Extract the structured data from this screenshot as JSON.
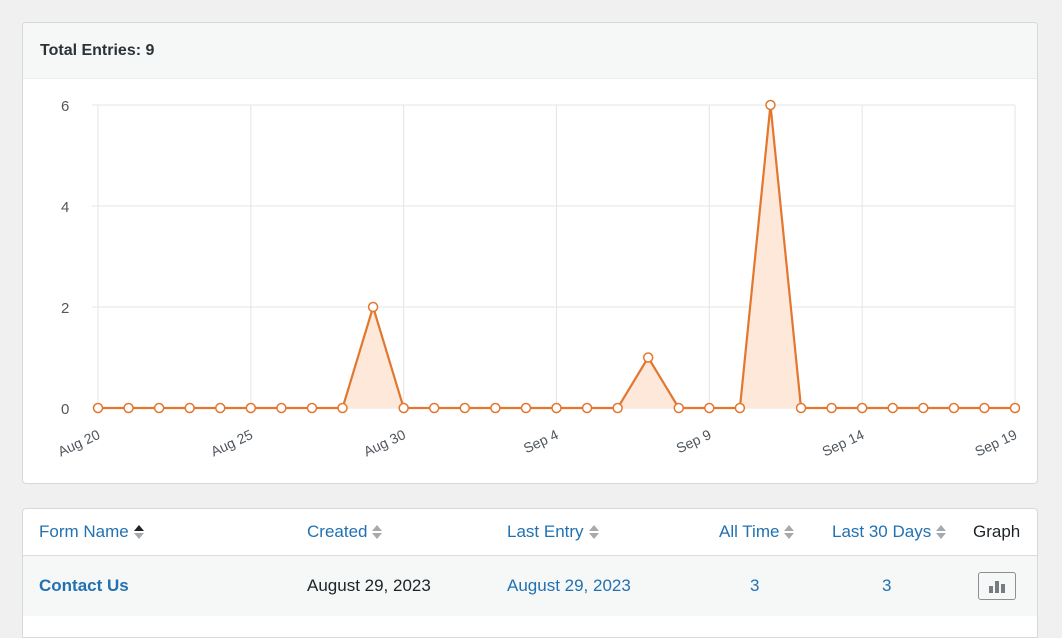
{
  "header": {
    "total_entries": "Total Entries: 9"
  },
  "colors": {
    "line": "#e27730",
    "fill": "#fde8d9",
    "grid": "#e5e5e5",
    "link": "#2271b1"
  },
  "chart_data": {
    "type": "area",
    "x": [
      "Aug 20",
      "Aug 21",
      "Aug 22",
      "Aug 23",
      "Aug 24",
      "Aug 25",
      "Aug 26",
      "Aug 27",
      "Aug 28",
      "Aug 29",
      "Aug 30",
      "Aug 31",
      "Sep 1",
      "Sep 2",
      "Sep 3",
      "Sep 4",
      "Sep 5",
      "Sep 6",
      "Sep 7",
      "Sep 8",
      "Sep 9",
      "Sep 10",
      "Sep 11",
      "Sep 12",
      "Sep 13",
      "Sep 14",
      "Sep 15",
      "Sep 16",
      "Sep 17",
      "Sep 18",
      "Sep 19"
    ],
    "values": [
      0,
      0,
      0,
      0,
      0,
      0,
      0,
      0,
      0,
      2,
      0,
      0,
      0,
      0,
      0,
      0,
      0,
      0,
      1,
      0,
      0,
      0,
      6,
      0,
      0,
      0,
      0,
      0,
      0,
      0,
      0
    ],
    "xticks": [
      "Aug 20",
      "Aug 25",
      "Aug 30",
      "Sep 4",
      "Sep 9",
      "Sep 14",
      "Sep 19"
    ],
    "yticks": [
      "0",
      "2",
      "4",
      "6"
    ],
    "ylim": [
      0,
      6
    ],
    "grid": true
  },
  "table": {
    "columns": {
      "form_name": "Form Name",
      "created": "Created",
      "last_entry": "Last Entry",
      "all_time": "All Time",
      "last_30_days": "Last 30 Days",
      "graph": "Graph"
    },
    "rows": [
      {
        "form_name": "Contact Us",
        "created": "August 29, 2023",
        "last_entry": "August 29, 2023",
        "all_time": "3",
        "last_30_days": "3",
        "graph_icon": "bar-chart-icon"
      }
    ]
  }
}
